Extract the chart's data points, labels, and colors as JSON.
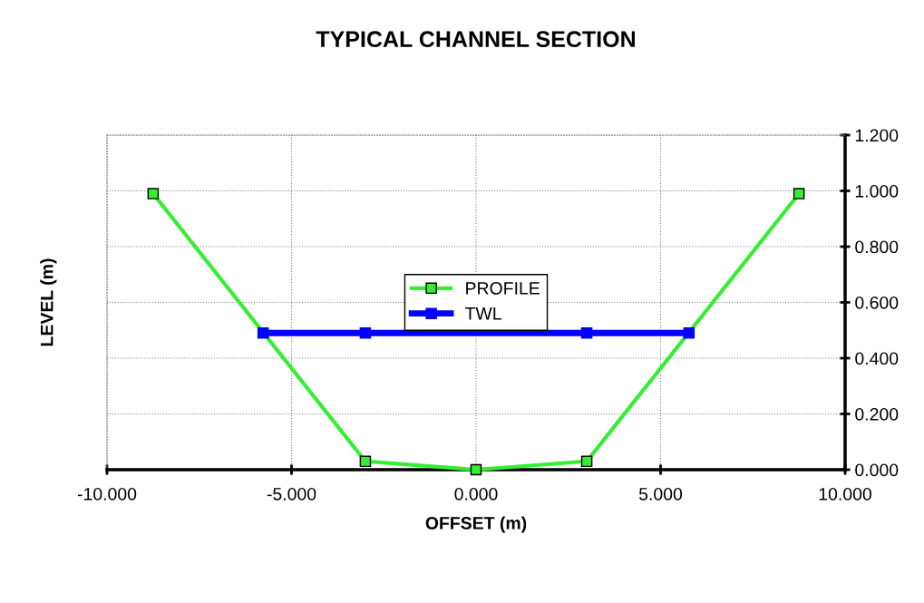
{
  "chart_data": {
    "type": "line",
    "title": "TYPICAL CHANNEL SECTION",
    "xlabel": "OFFSET (m)",
    "ylabel": "LEVEL (m)",
    "series": [
      {
        "name": "PROFILE",
        "color": "#33ee33",
        "x": [
          -8.75,
          -3.0,
          0.0,
          3.0,
          8.75
        ],
        "values": [
          0.99,
          0.03,
          0.0,
          0.03,
          0.99
        ]
      },
      {
        "name": "TWL",
        "color": "#0000ff",
        "x": [
          -5.77,
          -3.0,
          3.0,
          5.77
        ],
        "values": [
          0.49,
          0.49,
          0.49,
          0.49
        ]
      }
    ],
    "xlim": [
      -10,
      10
    ],
    "ylim": [
      0,
      1.2
    ],
    "xticks": [
      {
        "value": -10,
        "label": "-10.000"
      },
      {
        "value": -5,
        "label": "-5.000"
      },
      {
        "value": 0,
        "label": "0.000"
      },
      {
        "value": 5,
        "label": "5.000"
      },
      {
        "value": 10,
        "label": "10.000"
      }
    ],
    "yticks": [
      {
        "value": 0,
        "label": "0.000"
      },
      {
        "value": 0.2,
        "label": "0.200"
      },
      {
        "value": 0.4,
        "label": "0.400"
      },
      {
        "value": 0.6,
        "label": "0.600"
      },
      {
        "value": 0.8,
        "label": "0.800"
      },
      {
        "value": 1.0,
        "label": "1.000"
      },
      {
        "value": 1.2,
        "label": "1.200"
      }
    ],
    "grid": true,
    "legend": "center",
    "marker": "square",
    "line_style": "solid"
  }
}
